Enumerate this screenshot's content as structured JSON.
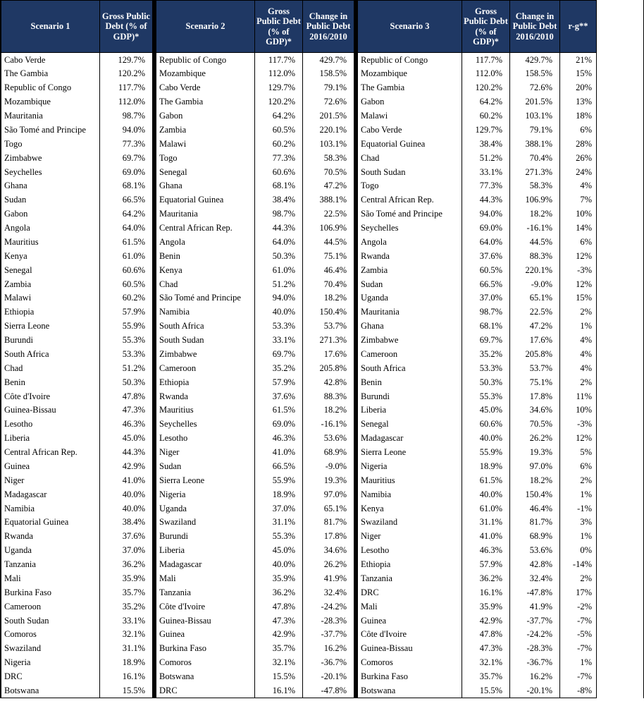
{
  "headers": {
    "scenario1": "Scenario 1",
    "scenario2": "Scenario 2",
    "scenario3": "Scenario 3",
    "gross_debt": "Gross Public Debt (% of GDP)*",
    "change": "Change in Public Debt 2016/2010",
    "rg": "r-g**"
  },
  "col_widths": {
    "s1_country": 140,
    "s1_debt": 75,
    "s2_country": 140,
    "s2_debt": 68,
    "s2_change": 73,
    "s3_country": 148,
    "s3_debt": 68,
    "s3_change": 71,
    "s3_rg": 52
  },
  "scenario1": [
    {
      "c": "Cabo Verde",
      "d": "129.7%"
    },
    {
      "c": "The Gambia",
      "d": "120.2%"
    },
    {
      "c": "Republic of Congo",
      "d": "117.7%"
    },
    {
      "c": "Mozambique",
      "d": "112.0%"
    },
    {
      "c": "Mauritania",
      "d": "98.7%"
    },
    {
      "c": "São Tomé and Principe",
      "d": "94.0%"
    },
    {
      "c": "Togo",
      "d": "77.3%"
    },
    {
      "c": "Zimbabwe",
      "d": "69.7%"
    },
    {
      "c": "Seychelles",
      "d": "69.0%"
    },
    {
      "c": "Ghana",
      "d": "68.1%"
    },
    {
      "c": "Sudan",
      "d": "66.5%"
    },
    {
      "c": "Gabon",
      "d": "64.2%"
    },
    {
      "c": "Angola",
      "d": "64.0%"
    },
    {
      "c": "Mauritius",
      "d": "61.5%"
    },
    {
      "c": "Kenya",
      "d": "61.0%"
    },
    {
      "c": "Senegal",
      "d": "60.6%"
    },
    {
      "c": "Zambia",
      "d": "60.5%"
    },
    {
      "c": "Malawi",
      "d": "60.2%"
    },
    {
      "c": "Ethiopia",
      "d": "57.9%"
    },
    {
      "c": "Sierra Leone",
      "d": "55.9%"
    },
    {
      "c": "Burundi",
      "d": "55.3%"
    },
    {
      "c": "South Africa",
      "d": "53.3%"
    },
    {
      "c": "Chad",
      "d": "51.2%"
    },
    {
      "c": "Benin",
      "d": "50.3%"
    },
    {
      "c": "Côte d'Ivoire",
      "d": "47.8%"
    },
    {
      "c": "Guinea-Bissau",
      "d": "47.3%"
    },
    {
      "c": "Lesotho",
      "d": "46.3%"
    },
    {
      "c": "Liberia",
      "d": "45.0%"
    },
    {
      "c": "Central African Rep.",
      "d": "44.3%"
    },
    {
      "c": "Guinea",
      "d": "42.9%"
    },
    {
      "c": "Niger",
      "d": "41.0%"
    },
    {
      "c": "Madagascar",
      "d": "40.0%"
    },
    {
      "c": "Namibia",
      "d": "40.0%"
    },
    {
      "c": "Equatorial Guinea",
      "d": "38.4%"
    },
    {
      "c": "Rwanda",
      "d": "37.6%"
    },
    {
      "c": "Uganda",
      "d": "37.0%"
    },
    {
      "c": "Tanzania",
      "d": "36.2%"
    },
    {
      "c": "Mali",
      "d": "35.9%"
    },
    {
      "c": "Burkina Faso",
      "d": "35.7%"
    },
    {
      "c": "Cameroon",
      "d": "35.2%"
    },
    {
      "c": "South Sudan",
      "d": "33.1%"
    },
    {
      "c": "Comoros",
      "d": "32.1%"
    },
    {
      "c": "Swaziland",
      "d": "31.1%"
    },
    {
      "c": "Nigeria",
      "d": "18.9%"
    },
    {
      "c": "DRC",
      "d": "16.1%"
    },
    {
      "c": "Botswana",
      "d": "15.5%"
    }
  ],
  "scenario2": [
    {
      "c": "Republic of Congo",
      "d": "117.7%",
      "ch": "429.7%"
    },
    {
      "c": "Mozambique",
      "d": "112.0%",
      "ch": "158.5%"
    },
    {
      "c": "Cabo Verde",
      "d": "129.7%",
      "ch": "79.1%"
    },
    {
      "c": "The Gambia",
      "d": "120.2%",
      "ch": "72.6%"
    },
    {
      "c": "Gabon",
      "d": "64.2%",
      "ch": "201.5%"
    },
    {
      "c": "Zambia",
      "d": "60.5%",
      "ch": "220.1%"
    },
    {
      "c": "Malawi",
      "d": "60.2%",
      "ch": "103.1%"
    },
    {
      "c": "Togo",
      "d": "77.3%",
      "ch": "58.3%"
    },
    {
      "c": "Senegal",
      "d": "60.6%",
      "ch": "70.5%"
    },
    {
      "c": "Ghana",
      "d": "68.1%",
      "ch": "47.2%"
    },
    {
      "c": "Equatorial Guinea",
      "d": "38.4%",
      "ch": "388.1%"
    },
    {
      "c": "Mauritania",
      "d": "98.7%",
      "ch": "22.5%"
    },
    {
      "c": "Central African Rep.",
      "d": "44.3%",
      "ch": "106.9%"
    },
    {
      "c": "Angola",
      "d": "64.0%",
      "ch": "44.5%"
    },
    {
      "c": "Benin",
      "d": "50.3%",
      "ch": "75.1%"
    },
    {
      "c": "Kenya",
      "d": "61.0%",
      "ch": "46.4%"
    },
    {
      "c": "Chad",
      "d": "51.2%",
      "ch": "70.4%"
    },
    {
      "c": "São Tomé and Principe",
      "d": "94.0%",
      "ch": "18.2%"
    },
    {
      "c": "Namibia",
      "d": "40.0%",
      "ch": "150.4%"
    },
    {
      "c": "South Africa",
      "d": "53.3%",
      "ch": "53.7%"
    },
    {
      "c": "South Sudan",
      "d": "33.1%",
      "ch": "271.3%"
    },
    {
      "c": "Zimbabwe",
      "d": "69.7%",
      "ch": "17.6%"
    },
    {
      "c": "Cameroon",
      "d": "35.2%",
      "ch": "205.8%"
    },
    {
      "c": "Ethiopia",
      "d": "57.9%",
      "ch": "42.8%"
    },
    {
      "c": "Rwanda",
      "d": "37.6%",
      "ch": "88.3%"
    },
    {
      "c": "Mauritius",
      "d": "61.5%",
      "ch": "18.2%"
    },
    {
      "c": "Seychelles",
      "d": "69.0%",
      "ch": "-16.1%"
    },
    {
      "c": "Lesotho",
      "d": "46.3%",
      "ch": "53.6%"
    },
    {
      "c": "Niger",
      "d": "41.0%",
      "ch": "68.9%"
    },
    {
      "c": "Sudan",
      "d": "66.5%",
      "ch": "-9.0%"
    },
    {
      "c": "Sierra Leone",
      "d": "55.9%",
      "ch": "19.3%"
    },
    {
      "c": "Nigeria",
      "d": "18.9%",
      "ch": "97.0%"
    },
    {
      "c": "Uganda",
      "d": "37.0%",
      "ch": "65.1%"
    },
    {
      "c": "Swaziland",
      "d": "31.1%",
      "ch": "81.7%"
    },
    {
      "c": "Burundi",
      "d": "55.3%",
      "ch": "17.8%"
    },
    {
      "c": "Liberia",
      "d": "45.0%",
      "ch": "34.6%"
    },
    {
      "c": "Madagascar",
      "d": "40.0%",
      "ch": "26.2%"
    },
    {
      "c": "Mali",
      "d": "35.9%",
      "ch": "41.9%"
    },
    {
      "c": "Tanzania",
      "d": "36.2%",
      "ch": "32.4%"
    },
    {
      "c": "Côte d'Ivoire",
      "d": "47.8%",
      "ch": "-24.2%"
    },
    {
      "c": "Guinea-Bissau",
      "d": "47.3%",
      "ch": "-28.3%"
    },
    {
      "c": "Guinea",
      "d": "42.9%",
      "ch": "-37.7%"
    },
    {
      "c": "Burkina Faso",
      "d": "35.7%",
      "ch": "16.2%"
    },
    {
      "c": "Comoros",
      "d": "32.1%",
      "ch": "-36.7%"
    },
    {
      "c": "Botswana",
      "d": "15.5%",
      "ch": "-20.1%"
    },
    {
      "c": "DRC",
      "d": "16.1%",
      "ch": "-47.8%"
    }
  ],
  "scenario3": [
    {
      "c": "Republic of Congo",
      "d": "117.7%",
      "ch": "429.7%",
      "rg": "21%"
    },
    {
      "c": "Mozambique",
      "d": "112.0%",
      "ch": "158.5%",
      "rg": "15%"
    },
    {
      "c": "The Gambia",
      "d": "120.2%",
      "ch": "72.6%",
      "rg": "20%"
    },
    {
      "c": "Gabon",
      "d": "64.2%",
      "ch": "201.5%",
      "rg": "13%"
    },
    {
      "c": "Malawi",
      "d": "60.2%",
      "ch": "103.1%",
      "rg": "18%"
    },
    {
      "c": "Cabo Verde",
      "d": "129.7%",
      "ch": "79.1%",
      "rg": "6%"
    },
    {
      "c": "Equatorial Guinea",
      "d": "38.4%",
      "ch": "388.1%",
      "rg": "28%"
    },
    {
      "c": "Chad",
      "d": "51.2%",
      "ch": "70.4%",
      "rg": "26%"
    },
    {
      "c": "South Sudan",
      "d": "33.1%",
      "ch": "271.3%",
      "rg": "24%"
    },
    {
      "c": "Togo",
      "d": "77.3%",
      "ch": "58.3%",
      "rg": "4%"
    },
    {
      "c": "Central African Rep.",
      "d": "44.3%",
      "ch": "106.9%",
      "rg": "7%"
    },
    {
      "c": "São Tomé and Principe",
      "d": "94.0%",
      "ch": "18.2%",
      "rg": "10%"
    },
    {
      "c": "Seychelles",
      "d": "69.0%",
      "ch": "-16.1%",
      "rg": "14%"
    },
    {
      "c": "Angola",
      "d": "64.0%",
      "ch": "44.5%",
      "rg": "6%"
    },
    {
      "c": "Rwanda",
      "d": "37.6%",
      "ch": "88.3%",
      "rg": "12%"
    },
    {
      "c": "Zambia",
      "d": "60.5%",
      "ch": "220.1%",
      "rg": "-3%"
    },
    {
      "c": "Sudan",
      "d": "66.5%",
      "ch": "-9.0%",
      "rg": "12%"
    },
    {
      "c": "Uganda",
      "d": "37.0%",
      "ch": "65.1%",
      "rg": "15%"
    },
    {
      "c": "Mauritania",
      "d": "98.7%",
      "ch": "22.5%",
      "rg": "2%"
    },
    {
      "c": "Ghana",
      "d": "68.1%",
      "ch": "47.2%",
      "rg": "1%"
    },
    {
      "c": "Zimbabwe",
      "d": "69.7%",
      "ch": "17.6%",
      "rg": "4%"
    },
    {
      "c": "Cameroon",
      "d": "35.2%",
      "ch": "205.8%",
      "rg": "4%"
    },
    {
      "c": "South Africa",
      "d": "53.3%",
      "ch": "53.7%",
      "rg": "4%"
    },
    {
      "c": "Benin",
      "d": "50.3%",
      "ch": "75.1%",
      "rg": "2%"
    },
    {
      "c": "Burundi",
      "d": "55.3%",
      "ch": "17.8%",
      "rg": "11%"
    },
    {
      "c": "Liberia",
      "d": "45.0%",
      "ch": "34.6%",
      "rg": "10%"
    },
    {
      "c": "Senegal",
      "d": "60.6%",
      "ch": "70.5%",
      "rg": "-3%"
    },
    {
      "c": "Madagascar",
      "d": "40.0%",
      "ch": "26.2%",
      "rg": "12%"
    },
    {
      "c": "Sierra Leone",
      "d": "55.9%",
      "ch": "19.3%",
      "rg": "5%"
    },
    {
      "c": "Nigeria",
      "d": "18.9%",
      "ch": "97.0%",
      "rg": "6%"
    },
    {
      "c": "Mauritius",
      "d": "61.5%",
      "ch": "18.2%",
      "rg": "2%"
    },
    {
      "c": "Namibia",
      "d": "40.0%",
      "ch": "150.4%",
      "rg": "1%"
    },
    {
      "c": "Kenya",
      "d": "61.0%",
      "ch": "46.4%",
      "rg": "-1%"
    },
    {
      "c": "Swaziland",
      "d": "31.1%",
      "ch": "81.7%",
      "rg": "3%"
    },
    {
      "c": "Niger",
      "d": "41.0%",
      "ch": "68.9%",
      "rg": "1%"
    },
    {
      "c": "Lesotho",
      "d": "46.3%",
      "ch": "53.6%",
      "rg": "0%"
    },
    {
      "c": "Ethiopia",
      "d": "57.9%",
      "ch": "42.8%",
      "rg": "-14%"
    },
    {
      "c": "Tanzania",
      "d": "36.2%",
      "ch": "32.4%",
      "rg": "2%"
    },
    {
      "c": "DRC",
      "d": "16.1%",
      "ch": "-47.8%",
      "rg": "17%"
    },
    {
      "c": "Mali",
      "d": "35.9%",
      "ch": "41.9%",
      "rg": "-2%"
    },
    {
      "c": "Guinea",
      "d": "42.9%",
      "ch": "-37.7%",
      "rg": "-7%"
    },
    {
      "c": "Côte d'Ivoire",
      "d": "47.8%",
      "ch": "-24.2%",
      "rg": "-5%"
    },
    {
      "c": "Guinea-Bissau",
      "d": "47.3%",
      "ch": "-28.3%",
      "rg": "-7%"
    },
    {
      "c": "Comoros",
      "d": "32.1%",
      "ch": "-36.7%",
      "rg": "1%"
    },
    {
      "c": "Burkina Faso",
      "d": "35.7%",
      "ch": "16.2%",
      "rg": "-7%"
    },
    {
      "c": "Botswana",
      "d": "15.5%",
      "ch": "-20.1%",
      "rg": "-8%"
    }
  ]
}
